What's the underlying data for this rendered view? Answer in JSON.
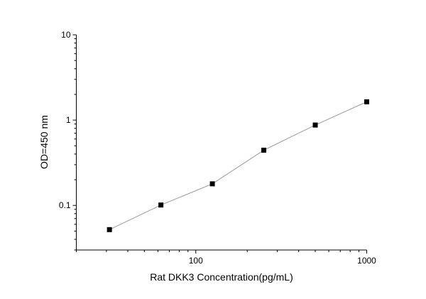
{
  "chart_data": {
    "type": "line",
    "title": "",
    "xlabel": "Rat DKK3 Concentration(pg/mL)",
    "ylabel": "OD=450 nm",
    "x_scale": "log",
    "y_scale": "log",
    "xlim": [
      20,
      1000
    ],
    "ylim": [
      0.03,
      10
    ],
    "x_ticks": [
      {
        "value": 100,
        "label": "100"
      },
      {
        "value": 1000,
        "label": "1000"
      }
    ],
    "y_ticks": [
      {
        "value": 0.1,
        "label": "0.1"
      },
      {
        "value": 1,
        "label": "1"
      },
      {
        "value": 10,
        "label": "10"
      }
    ],
    "grid": false,
    "marker": "square",
    "line_color": "#999999",
    "marker_color": "#000000",
    "series": [
      {
        "x": [
          31.25,
          62.5,
          125,
          250,
          500,
          1000
        ],
        "y": [
          0.052,
          0.101,
          0.179,
          0.444,
          0.875,
          1.64
        ]
      }
    ]
  }
}
